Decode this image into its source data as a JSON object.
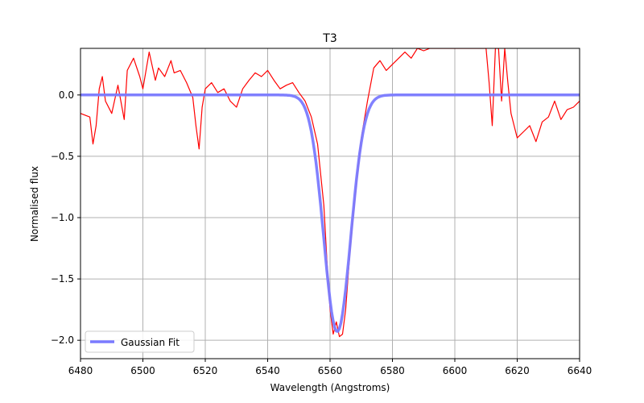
{
  "chart_data": {
    "type": "line",
    "title": "T3",
    "xlabel": "Wavelength (Angstroms)",
    "ylabel": "Normalised flux",
    "xlim": [
      6480,
      6640
    ],
    "ylim": [
      -2.15,
      0.38
    ],
    "xticks": [
      6480,
      6500,
      6520,
      6540,
      6560,
      6580,
      6600,
      6620,
      6640
    ],
    "yticks": [
      -2.0,
      -1.5,
      -1.0,
      -0.5,
      0.0
    ],
    "ytick_labels": [
      "−2.0",
      "−1.5",
      "−1.0",
      "−0.5",
      "0.0"
    ],
    "grid": true,
    "legend": {
      "position": "lower-left",
      "entries": [
        "Gaussian Fit"
      ]
    },
    "series": [
      {
        "color": "#ff0000",
        "x": [
          6480,
          6483,
          6484,
          6485,
          6486,
          6487,
          6488,
          6490,
          6492,
          6494,
          6495,
          6497,
          6499,
          6500,
          6502,
          6504,
          6505,
          6507,
          6509,
          6510,
          6512,
          6514,
          6516,
          6517,
          6518,
          6519,
          6520,
          6522,
          6524,
          6526,
          6528,
          6530,
          6532,
          6534,
          6536,
          6538,
          6540,
          6542,
          6544,
          6546,
          6548,
          6550,
          6552,
          6554,
          6556,
          6558,
          6559,
          6560,
          6561,
          6562,
          6563,
          6564,
          6565,
          6566,
          6567,
          6568,
          6570,
          6572,
          6574,
          6576,
          6578,
          6580,
          6582,
          6584,
          6586,
          6588,
          6590,
          6592,
          6594,
          6596,
          6598,
          6600,
          6602,
          6604,
          6606,
          6608,
          6610,
          6611,
          6612,
          6613,
          6614,
          6615,
          6616,
          6617,
          6618,
          6620,
          6622,
          6624,
          6626,
          6628,
          6630,
          6632,
          6634,
          6636,
          6638,
          6640
        ],
        "y": [
          -0.15,
          -0.18,
          -0.4,
          -0.25,
          0.05,
          0.15,
          -0.05,
          -0.15,
          0.08,
          -0.2,
          0.2,
          0.3,
          0.15,
          0.05,
          0.35,
          0.12,
          0.22,
          0.15,
          0.28,
          0.18,
          0.2,
          0.1,
          -0.02,
          -0.25,
          -0.44,
          -0.1,
          0.05,
          0.1,
          0.02,
          0.05,
          -0.05,
          -0.1,
          0.05,
          0.12,
          0.18,
          0.15,
          0.2,
          0.12,
          0.05,
          0.08,
          0.1,
          0.02,
          -0.05,
          -0.18,
          -0.4,
          -0.9,
          -1.35,
          -1.75,
          -1.95,
          -1.85,
          -1.97,
          -1.95,
          -1.75,
          -1.4,
          -1.1,
          -0.85,
          -0.35,
          -0.05,
          0.22,
          0.28,
          0.2,
          0.25,
          0.3,
          0.35,
          0.3,
          0.38,
          0.36,
          0.38,
          0.38,
          0.38,
          0.38,
          0.38,
          0.38,
          0.38,
          0.38,
          0.38,
          0.38,
          0.1,
          -0.25,
          0.38,
          0.38,
          -0.05,
          0.38,
          0.1,
          -0.15,
          -0.35,
          -0.3,
          -0.25,
          -0.38,
          -0.22,
          -0.18,
          -0.05,
          -0.2,
          -0.12,
          -0.1,
          -0.05
        ]
      },
      {
        "name": "Gaussian Fit",
        "color": "#7a7aff",
        "gaussian": {
          "amplitude": -1.93,
          "center": 6562.3,
          "sigma": 4.3
        }
      }
    ]
  }
}
